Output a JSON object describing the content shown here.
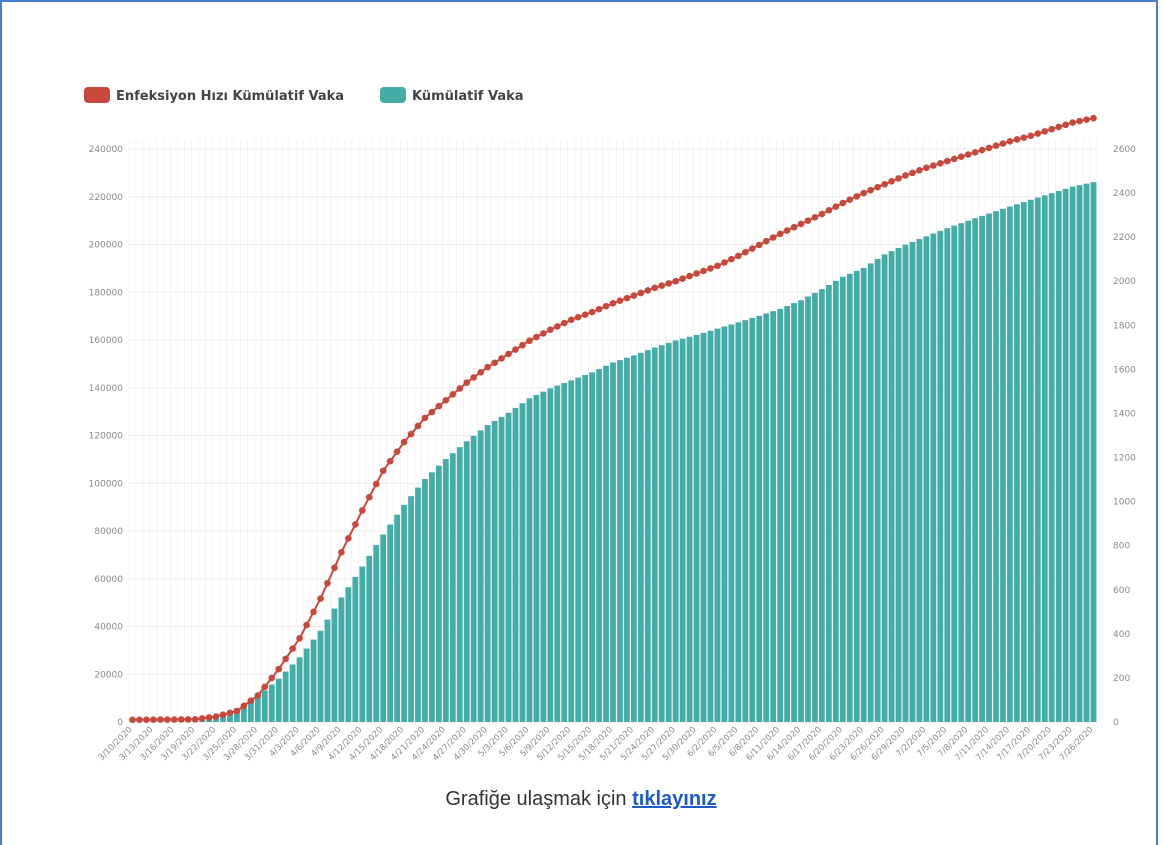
{
  "caption": {
    "text": "Grafiğe ulaşmak için",
    "link": "tıklayınız"
  },
  "colors": {
    "line": "#c8483b",
    "bar": "#45ada8",
    "grid": "#ececec",
    "frame": "#4a7fd0"
  },
  "chart_data": {
    "type": "bar",
    "title": "",
    "legend": {
      "placement": "top-left",
      "entries": [
        {
          "name": "Enfeksiyon Hızı Kümülatif Vaka",
          "color": "#c8483b",
          "series_type": "line"
        },
        {
          "name": "Kümülatif Vaka",
          "color": "#45ada8",
          "series_type": "bar"
        }
      ]
    },
    "grid": true,
    "start_date": "3/10/2020",
    "x_tick_labels": [
      "3/10/2020",
      "3/13/2020",
      "3/16/2020",
      "3/19/2020",
      "3/22/2020",
      "3/25/2020",
      "3/28/2020",
      "3/31/2020",
      "4/3/2020",
      "4/6/2020",
      "4/9/2020",
      "4/12/2020",
      "4/15/2020",
      "4/18/2020",
      "4/21/2020",
      "4/24/2020",
      "4/27/2020",
      "4/30/2020",
      "5/3/2020",
      "5/6/2020",
      "5/9/2020",
      "5/12/2020",
      "5/15/2020",
      "5/18/2020",
      "5/21/2020",
      "5/24/2020",
      "5/27/2020",
      "5/30/2020",
      "6/2/2020",
      "6/5/2020",
      "6/8/2020",
      "6/11/2020",
      "6/14/2020",
      "6/17/2020",
      "6/20/2020",
      "6/23/2020",
      "6/26/2020",
      "6/29/2020",
      "7/2/2020",
      "7/5/2020",
      "7/8/2020",
      "7/11/2020",
      "7/14/2020",
      "7/17/2020",
      "7/20/2020",
      "7/23/2020",
      "7/26/2020"
    ],
    "y_left": {
      "ticks": [
        "0",
        "20000",
        "40000",
        "60000",
        "80000",
        "100000",
        "120000",
        "140000",
        "160000",
        "180000",
        "200000",
        "220000",
        "240000"
      ],
      "range": [
        0,
        240000
      ]
    },
    "y_right": {
      "ticks": [
        "0",
        "200",
        "400",
        "600",
        "800",
        "1000",
        "1200",
        "1400",
        "1600",
        "1800",
        "2000",
        "2200",
        "2400",
        "2600"
      ],
      "range": [
        0,
        2600
      ]
    },
    "series": [
      {
        "name": "Kümülatif Vaka",
        "axis": "left",
        "type": "bar",
        "keyframes": [
          [
            0,
            1
          ],
          [
            9,
            670
          ],
          [
            12,
            1872
          ],
          [
            15,
            5698
          ],
          [
            18,
            10827
          ],
          [
            21,
            18135
          ],
          [
            24,
            27069
          ],
          [
            27,
            38226
          ],
          [
            30,
            52167
          ],
          [
            33,
            65111
          ],
          [
            36,
            78546
          ],
          [
            39,
            90980
          ],
          [
            42,
            101790
          ],
          [
            45,
            110130
          ],
          [
            48,
            117589
          ],
          [
            51,
            124375
          ],
          [
            54,
            129491
          ],
          [
            57,
            135569
          ],
          [
            60,
            139771
          ],
          [
            63,
            143114
          ],
          [
            66,
            146457
          ],
          [
            69,
            150593
          ],
          [
            72,
            153548
          ],
          [
            75,
            156827
          ],
          [
            78,
            159797
          ],
          [
            81,
            162120
          ],
          [
            84,
            164769
          ],
          [
            87,
            167410
          ],
          [
            90,
            170132
          ],
          [
            93,
            173036
          ],
          [
            96,
            176677
          ],
          [
            99,
            181298
          ],
          [
            102,
            186493
          ],
          [
            105,
            190165
          ],
          [
            108,
            195883
          ],
          [
            111,
            199906
          ],
          [
            114,
            203456
          ],
          [
            117,
            206844
          ],
          [
            120,
            209962
          ],
          [
            123,
            212993
          ],
          [
            126,
            215940
          ],
          [
            129,
            218717
          ],
          [
            132,
            221500
          ],
          [
            135,
            224252
          ],
          [
            138,
            226100
          ]
        ]
      },
      {
        "name": "Enfeksiyon Hızı Kümülatif Vaka",
        "axis": "right",
        "type": "line",
        "keyframes": [
          [
            0,
            10
          ],
          [
            9,
            12
          ],
          [
            12,
            25
          ],
          [
            15,
            50
          ],
          [
            18,
            120
          ],
          [
            21,
            240
          ],
          [
            24,
            380
          ],
          [
            27,
            560
          ],
          [
            30,
            770
          ],
          [
            33,
            960
          ],
          [
            36,
            1140
          ],
          [
            39,
            1270
          ],
          [
            42,
            1380
          ],
          [
            45,
            1460
          ],
          [
            48,
            1540
          ],
          [
            51,
            1610
          ],
          [
            54,
            1670
          ],
          [
            57,
            1730
          ],
          [
            60,
            1780
          ],
          [
            63,
            1825
          ],
          [
            66,
            1860
          ],
          [
            69,
            1900
          ],
          [
            72,
            1935
          ],
          [
            75,
            1970
          ],
          [
            78,
            2000
          ],
          [
            81,
            2035
          ],
          [
            84,
            2070
          ],
          [
            87,
            2115
          ],
          [
            90,
            2165
          ],
          [
            93,
            2215
          ],
          [
            96,
            2260
          ],
          [
            99,
            2305
          ],
          [
            102,
            2355
          ],
          [
            105,
            2400
          ],
          [
            108,
            2440
          ],
          [
            111,
            2480
          ],
          [
            114,
            2515
          ],
          [
            117,
            2545
          ],
          [
            120,
            2575
          ],
          [
            123,
            2605
          ],
          [
            126,
            2635
          ],
          [
            129,
            2660
          ],
          [
            132,
            2690
          ],
          [
            135,
            2720
          ],
          [
            138,
            2740
          ]
        ]
      }
    ]
  }
}
